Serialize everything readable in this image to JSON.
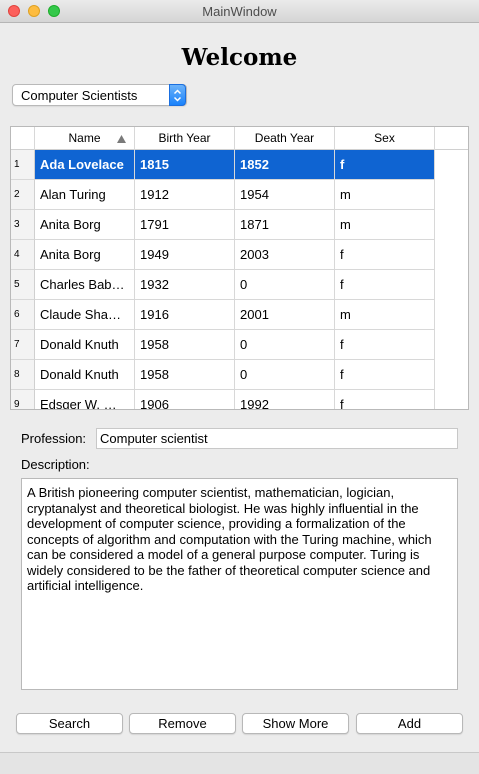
{
  "window": {
    "title": "MainWindow"
  },
  "welcome": "Welcome",
  "category_combo": {
    "selected": "Computer Scientists"
  },
  "table": {
    "columns": [
      "Name",
      "Birth Year",
      "Death Year",
      "Sex"
    ],
    "sort": {
      "column": "Name",
      "direction": "ascending"
    },
    "selected_row": 1,
    "rows": [
      {
        "num": "1",
        "name": "Ada Lovelace",
        "birth": "1815",
        "death": "1852",
        "sex": "f"
      },
      {
        "num": "2",
        "name": "Alan Turing",
        "birth": "1912",
        "death": "1954",
        "sex": "m"
      },
      {
        "num": "3",
        "name": "Anita Borg",
        "birth": "1791",
        "death": "1871",
        "sex": "m"
      },
      {
        "num": "4",
        "name": "Anita Borg",
        "birth": "1949",
        "death": "2003",
        "sex": "f"
      },
      {
        "num": "5",
        "name": "Charles Bab…",
        "birth": "1932",
        "death": "0",
        "sex": "f"
      },
      {
        "num": "6",
        "name": "Claude Sha…",
        "birth": "1916",
        "death": "2001",
        "sex": "m"
      },
      {
        "num": "7",
        "name": "Donald Knuth",
        "birth": "1958",
        "death": "0",
        "sex": "f"
      },
      {
        "num": "8",
        "name": "Donald Knuth",
        "birth": "1958",
        "death": "0",
        "sex": "f"
      },
      {
        "num": "9",
        "name": "Edsger W. …",
        "birth": "1906",
        "death": "1992",
        "sex": "f"
      }
    ]
  },
  "profession": {
    "label": "Profession:",
    "value": "Computer scientist"
  },
  "description": {
    "label": "Description:",
    "text": "A British pioneering computer scientist, mathematician, logician, cryptanalyst and theoretical biologist. He was highly influential in the development of computer science, providing a formalization of the concepts of algorithm and computation with the Turing machine, which can be considered a model of a general purpose computer. Turing is widely considered to be the father of theoretical computer science and artificial intelligence."
  },
  "buttons": {
    "search": "Search",
    "remove": "Remove",
    "show_more": "Show More",
    "add": "Add"
  },
  "colors": {
    "selection": "#0f64d2",
    "combo_accent": "#1a82fb"
  }
}
